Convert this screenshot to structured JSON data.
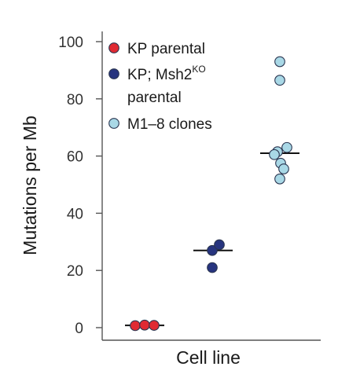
{
  "chart_data": {
    "type": "scatter",
    "title": "",
    "xlabel": "Cell line",
    "ylabel": "Mutations per Mb",
    "ylim": [
      0,
      100
    ],
    "yticks": [
      0,
      20,
      40,
      60,
      80,
      100
    ],
    "grid": false,
    "legend_position": "top-left",
    "series": [
      {
        "name": "KP parental",
        "color": "#e02a33",
        "median": 0.8,
        "values": [
          0.7,
          0.9,
          0.8
        ]
      },
      {
        "name": "KP; Msh2",
        "name_superscript": "KO",
        "name_line2": "parental",
        "color": "#27347f",
        "median": 27,
        "values": [
          27,
          29,
          21
        ]
      },
      {
        "name": "M1–8 clones",
        "color": "#a9d8e6",
        "median": 61,
        "values": [
          93,
          86.5,
          63,
          61.5,
          60.5,
          57.5,
          55.5,
          52
        ]
      }
    ]
  }
}
